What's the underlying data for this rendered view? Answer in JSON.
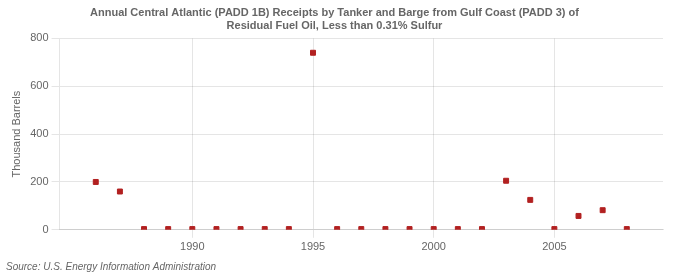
{
  "chart_data": {
    "type": "scatter",
    "title": "Annual Central Atlantic (PADD 1B) Receipts by Tanker and Barge from Gulf Coast (PADD 3) of\nResidual Fuel Oil, Less than 0.31% Sulfur",
    "ylabel": "Thousand Barrels",
    "annotations": [
      "Source: U.S. Energy Information Administration"
    ],
    "x": [
      1986,
      1987,
      1988,
      1989,
      1990,
      1991,
      1992,
      1993,
      1994,
      1995,
      1996,
      1997,
      1998,
      1999,
      2000,
      2001,
      2002,
      2003,
      2004,
      2005,
      2006,
      2007,
      2008
    ],
    "values": [
      200,
      160,
      3,
      3,
      3,
      3,
      3,
      3,
      3,
      740,
      3,
      3,
      3,
      3,
      3,
      3,
      3,
      205,
      125,
      3,
      58,
      82,
      3
    ],
    "color": "#b22020",
    "marker": "square",
    "xlim": [
      1984.5,
      2009.5
    ],
    "ylim": [
      0,
      800
    ],
    "xticks": [
      1990,
      1995,
      2000,
      2005
    ],
    "yticks": [
      0,
      200,
      400,
      600,
      800
    ],
    "grid": true
  }
}
